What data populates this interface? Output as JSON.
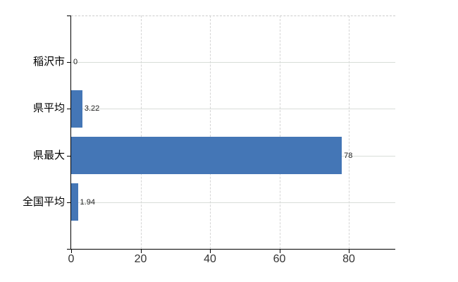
{
  "chart_data": {
    "type": "bar",
    "orientation": "horizontal",
    "title": "",
    "xlabel": "",
    "ylabel": "",
    "categories": [
      "稲沢市",
      "県平均",
      "県最大",
      "全国平均"
    ],
    "values": [
      0,
      3.22,
      78,
      1.94
    ],
    "value_labels": [
      "0",
      "3.22",
      "78",
      "1.94"
    ],
    "x_ticks": [
      0,
      20,
      40,
      60,
      80
    ],
    "x_tick_labels": [
      "0",
      "20",
      "40",
      "60",
      "80"
    ],
    "xlim": [
      0,
      93.4
    ],
    "grid": true,
    "legend": false,
    "colors": {
      "bar": "#4476b6",
      "axis": "#000000",
      "h_grid": "#d8ddd8",
      "v_grid": "#d4d4d4",
      "top_border": "#cccccc",
      "category_label": "#000000",
      "value_label": "#222222",
      "tick_label": "#333333"
    }
  }
}
